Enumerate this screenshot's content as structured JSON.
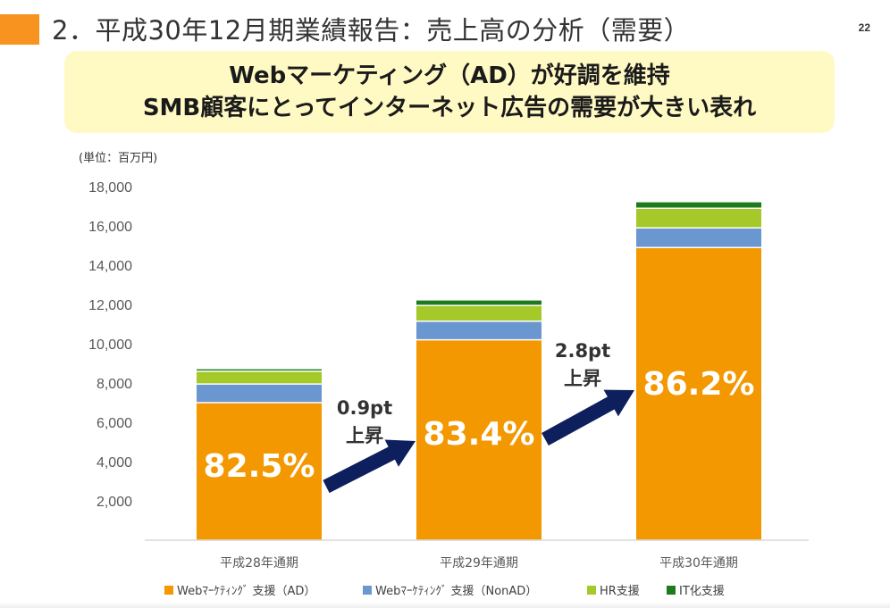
{
  "slide": {
    "title": "2．平成30年12月期業績報告：売上高の分析（需要）",
    "page_number": "22",
    "headline_line1": "Webマーケティング（AD）が好調を維持",
    "headline_line2": "SMB顧客にとってインターネット広告の需要が大きい表れ",
    "unit_label": "(単位：百万円)"
  },
  "chart_data": {
    "type": "bar",
    "stacked": true,
    "categories": [
      "平成28年通期",
      "平成29年通期",
      "平成30年通期"
    ],
    "series": [
      {
        "name": "Webﾏｰｹﾃｨﾝｸﾞ 支援（AD）",
        "color": "#f39800",
        "values": [
          7000,
          10200,
          14900
        ]
      },
      {
        "name": "Webﾏｰｹﾃｨﾝｸﾞ 支援（NonAD）",
        "color": "#6b97d1",
        "values": [
          950,
          950,
          1000
        ]
      },
      {
        "name": "HR支援",
        "color": "#a5c928",
        "values": [
          650,
          800,
          1000
        ]
      },
      {
        "name": "IT化支援",
        "color": "#1d7a1d",
        "values": [
          100,
          250,
          300
        ]
      }
    ],
    "ylim": [
      0,
      18000
    ],
    "yticks": [
      2000,
      4000,
      6000,
      8000,
      10000,
      12000,
      14000,
      16000,
      18000
    ],
    "ytick_labels": [
      "2,000",
      "4,000",
      "6,000",
      "8,000",
      "10,000",
      "12,000",
      "14,000",
      "16,000",
      "18,000"
    ],
    "share_labels": [
      "82.5%",
      "83.4%",
      "86.2%"
    ],
    "annotations": [
      {
        "line1": "0.9pt",
        "line2": "上昇"
      },
      {
        "line1": "2.8pt",
        "line2": "上昇"
      }
    ],
    "legend_position": "bottom"
  }
}
